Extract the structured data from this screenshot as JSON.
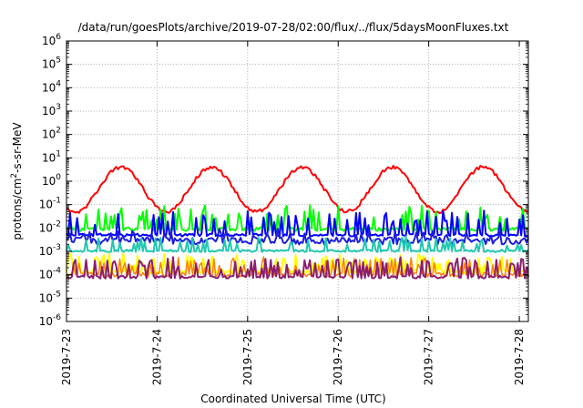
{
  "chart_data": {
    "type": "line",
    "title": "/data/run/goesPlots/archive/2019-07-28/02:00/flux/../flux/5daysMoonFluxes.txt",
    "xlabel": "Coordinated Universal Time (UTC)",
    "ylabel": {
      "base": "protons/cm",
      "sup": "2",
      "rest": "-s-sr-MeV"
    },
    "yscale": "log",
    "xlim": [
      0,
      5.1
    ],
    "ylim_exp": [
      -6,
      6
    ],
    "grid": true,
    "x_ticks": [
      {
        "x": 0,
        "label": "2019-7-23"
      },
      {
        "x": 1,
        "label": "2019-7-24"
      },
      {
        "x": 2,
        "label": "2019-7-25"
      },
      {
        "x": 3,
        "label": "2019-7-26"
      },
      {
        "x": 4,
        "label": "2019-7-27"
      },
      {
        "x": 5,
        "label": "2019-7-28"
      }
    ],
    "y_ticks": [
      {
        "exp": 6,
        "base": "10",
        "sup": "6"
      },
      {
        "exp": 5,
        "base": "10",
        "sup": "5"
      },
      {
        "exp": 4,
        "base": "10",
        "sup": "4"
      },
      {
        "exp": 3,
        "base": "10",
        "sup": "3"
      },
      {
        "exp": 2,
        "base": "10",
        "sup": "2"
      },
      {
        "exp": 1,
        "base": "10",
        "sup": "1"
      },
      {
        "exp": 0,
        "base": "10",
        "sup": "0"
      },
      {
        "exp": -1,
        "base": "10",
        "sup": "-1"
      },
      {
        "exp": -2,
        "base": "10",
        "sup": "-2"
      },
      {
        "exp": -3,
        "base": "10",
        "sup": "-3"
      },
      {
        "exp": -4,
        "base": "10",
        "sup": "-4"
      },
      {
        "exp": -5,
        "base": "10",
        "sup": "-5"
      },
      {
        "exp": -6,
        "base": "10",
        "sup": "-6"
      }
    ],
    "series": [
      {
        "color": "#ff0000",
        "width": 2,
        "log_mid": -0.35,
        "log_amp": 0.95,
        "period": 1.0,
        "phase": 0.35,
        "noise": 0.08,
        "spike_prob": 0.0,
        "spike_amp": 0.0
      },
      {
        "color": "#00ff00",
        "width": 2,
        "log_mid": -2.05,
        "log_amp": 0.0,
        "period": 1.0,
        "phase": 0.0,
        "noise": 0.08,
        "spike_prob": 0.22,
        "spike_amp": 1.0
      },
      {
        "color": "#0000ff",
        "width": 2,
        "log_mid": -2.3,
        "log_amp": 0.0,
        "period": 1.0,
        "phase": 0.0,
        "noise": 0.06,
        "spike_prob": 0.22,
        "spike_amp": 1.0
      },
      {
        "color": "#1e1edc",
        "width": 2,
        "log_mid": -2.55,
        "log_amp": 0.0,
        "period": 1.0,
        "phase": 0.0,
        "noise": 0.15,
        "spike_prob": 0.12,
        "spike_amp": 0.45
      },
      {
        "color": "#20c8b0",
        "width": 2,
        "log_mid": -2.98,
        "log_amp": 0.0,
        "period": 1.0,
        "phase": 0.0,
        "noise": 0.05,
        "spike_prob": 0.18,
        "spike_amp": 0.6
      },
      {
        "color": "#ffff00",
        "width": 2,
        "log_mid": -3.88,
        "log_amp": 0.0,
        "period": 1.0,
        "phase": 0.0,
        "noise": 0.08,
        "spike_prob": 0.3,
        "spike_amp": 0.75
      },
      {
        "color": "#ff8000",
        "width": 1.5,
        "log_mid": -4.0,
        "log_amp": 0.0,
        "period": 1.0,
        "phase": 0.0,
        "noise": 0.1,
        "spike_prob": 0.3,
        "spike_amp": 0.7
      },
      {
        "color": "#8b1e6e",
        "width": 2,
        "log_mid": -4.1,
        "log_amp": 0.0,
        "period": 1.0,
        "phase": 0.0,
        "noise": 0.06,
        "spike_prob": 0.3,
        "spike_amp": 0.8
      }
    ]
  }
}
